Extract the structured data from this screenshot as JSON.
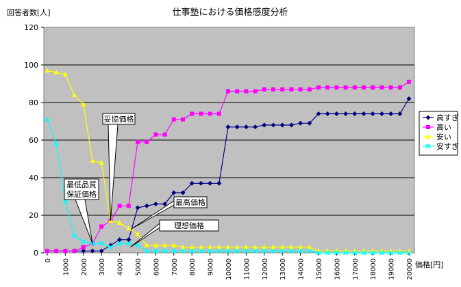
{
  "chart_data": {
    "type": "line",
    "title": "仕事塾における価格感度分析",
    "ylabel": "回答者数[人]",
    "xlabel": "価格[円]",
    "ylim": [
      0,
      120
    ],
    "yticks": [
      0,
      20,
      40,
      60,
      80,
      100,
      120
    ],
    "xlim": [
      0,
      20000
    ],
    "xticks": [
      0,
      1000,
      2000,
      3000,
      4000,
      5000,
      6000,
      7000,
      8000,
      9000,
      10000,
      11000,
      12000,
      13000,
      14000,
      15000,
      16000,
      17000,
      18000,
      19000,
      20000
    ],
    "grid": "horizontal",
    "plot_background": "#c0c0c0",
    "legend_position": "right",
    "x": [
      0,
      500,
      1000,
      1500,
      2000,
      2500,
      3000,
      3500,
      4000,
      4500,
      5000,
      5500,
      6000,
      6500,
      7000,
      7500,
      8000,
      8500,
      9000,
      9500,
      10000,
      10500,
      11000,
      11500,
      12000,
      12500,
      13000,
      13500,
      14000,
      14500,
      15000,
      15500,
      16000,
      16500,
      17000,
      17500,
      18000,
      18500,
      19000,
      19500,
      20000
    ],
    "series": [
      {
        "name": "高すぎ",
        "color": "#000080",
        "marker": "diamond",
        "values": [
          1,
          1,
          1,
          1,
          1,
          1,
          1,
          4,
          7,
          7,
          24,
          25,
          26,
          26,
          32,
          32,
          37,
          37,
          37,
          37,
          67,
          67,
          67,
          67,
          68,
          68,
          68,
          68,
          69,
          69,
          74,
          74,
          74,
          74,
          74,
          74,
          74,
          74,
          74,
          74,
          82
        ]
      },
      {
        "name": "高い",
        "color": "#ff00ff",
        "marker": "square",
        "values": [
          1,
          1,
          1,
          1,
          3,
          5,
          14,
          17,
          25,
          25,
          59,
          59,
          63,
          63,
          71,
          71,
          74,
          74,
          74,
          74,
          86,
          86,
          86,
          86,
          87,
          87,
          87,
          87,
          87,
          87,
          88,
          88,
          88,
          88,
          88,
          88,
          88,
          88,
          88,
          88,
          91
        ]
      },
      {
        "name": "安い",
        "color": "#ffff00",
        "marker": "triangle",
        "values": [
          97,
          96,
          95,
          84,
          79,
          49,
          48,
          17,
          16,
          13,
          10,
          4,
          4,
          4,
          4,
          3,
          3,
          3,
          3,
          3,
          3,
          3,
          3,
          3,
          3,
          3,
          3,
          3,
          3,
          3,
          1,
          1,
          1,
          1,
          1,
          1,
          1,
          1,
          1,
          1,
          1
        ]
      },
      {
        "name": "安すぎ",
        "color": "#00ffff",
        "marker": "x",
        "values": [
          71,
          58,
          27,
          9,
          6,
          5,
          5,
          3,
          5,
          5,
          4,
          1,
          1,
          1,
          1,
          1,
          1,
          1,
          1,
          1,
          1,
          1,
          1,
          1,
          1,
          1,
          1,
          1,
          1,
          1,
          0,
          0,
          0,
          0,
          0,
          0,
          0,
          0,
          0,
          0,
          0
        ]
      }
    ],
    "annotations": [
      {
        "label": "妥協価格",
        "point": [
          3500,
          17
        ]
      },
      {
        "label": "最低品質\n保証価格",
        "point": [
          2500,
          5
        ]
      },
      {
        "label": "最高価格",
        "point": [
          4700,
          13
        ]
      },
      {
        "label": "理想価格",
        "point": [
          4600,
          3
        ]
      }
    ]
  }
}
